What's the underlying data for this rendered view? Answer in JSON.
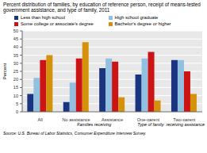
{
  "chart_data": {
    "type": "bar",
    "title": "Percent distribution of families, by education of reference person, receipt of means-\ntested government assistance, and type of family, 2011",
    "ylabel": "Percent",
    "source": "Source: U.S. Bureau of Labor Statistics, Consumer Expenditure Interview Survey.",
    "annotations": [
      "Families receiving",
      "Type of family  receiving assistance"
    ],
    "categories": [
      "All",
      "No assistance",
      "Assistance",
      "One-parent",
      "Two-parent"
    ],
    "series": [
      {
        "name": "Less than high school",
        "color": "#1a3480",
        "values": [
          11,
          6,
          27,
          23,
          32
        ]
      },
      {
        "name": "High school graduate",
        "color": "#92c0e0",
        "values": [
          21,
          18,
          33,
          33,
          32
        ]
      },
      {
        "name": "Some college or associate's degree",
        "color": "#cc1414",
        "values": [
          32,
          33,
          31,
          37,
          25
        ]
      },
      {
        "name": "Bachelor's degree or higher",
        "color": "#d4920a",
        "values": [
          35,
          43,
          9,
          7,
          11
        ]
      }
    ],
    "ylim": [
      0,
      50
    ],
    "yticks": [
      0,
      5,
      10,
      15,
      20,
      25,
      30,
      35,
      40,
      45,
      50
    ],
    "grid": true,
    "legend": "top"
  }
}
